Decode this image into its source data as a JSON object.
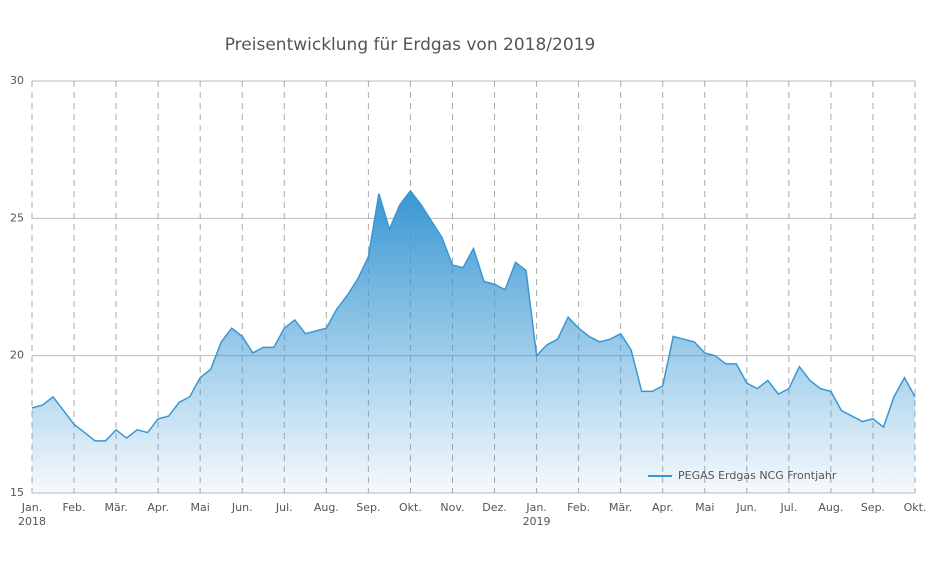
{
  "chart_data": {
    "type": "area",
    "title": "Preisentwicklung für Erdgas von 2018/2019",
    "xlim": [
      0,
      21
    ],
    "xticks": [
      {
        "value": 0,
        "label": "Jan."
      },
      {
        "value": 1,
        "label": "Feb."
      },
      {
        "value": 2,
        "label": "Mär."
      },
      {
        "value": 3,
        "label": "Apr."
      },
      {
        "value": 4,
        "label": "Mai"
      },
      {
        "value": 5,
        "label": "Jun."
      },
      {
        "value": 6,
        "label": "Jul."
      },
      {
        "value": 7,
        "label": "Aug."
      },
      {
        "value": 8,
        "label": "Sep."
      },
      {
        "value": 9,
        "label": "Okt."
      },
      {
        "value": 10,
        "label": "Nov."
      },
      {
        "value": 11,
        "label": "Dez."
      },
      {
        "value": 12,
        "label": "Jan."
      },
      {
        "value": 13,
        "label": "Feb."
      },
      {
        "value": 14,
        "label": "Mär."
      },
      {
        "value": 15,
        "label": "Apr."
      },
      {
        "value": 16,
        "label": "Mai"
      },
      {
        "value": 17,
        "label": "Jun."
      },
      {
        "value": 18,
        "label": "Jul."
      },
      {
        "value": 19,
        "label": "Aug."
      },
      {
        "value": 20,
        "label": "Sep."
      },
      {
        "value": 21,
        "label": "Okt."
      }
    ],
    "year_labels": [
      {
        "value": 0,
        "label": "2018"
      },
      {
        "value": 12,
        "label": "2019"
      }
    ],
    "ylim": [
      15,
      30
    ],
    "yticks": [
      15,
      20,
      25,
      30
    ],
    "grid": true,
    "legend": "bottom-right",
    "x": [
      0,
      0.25,
      0.5,
      0.75,
      1,
      1.25,
      1.5,
      1.75,
      2,
      2.25,
      2.5,
      2.75,
      3,
      3.25,
      3.5,
      3.75,
      4,
      4.25,
      4.5,
      4.75,
      5,
      5.25,
      5.5,
      5.75,
      6,
      6.25,
      6.5,
      6.75,
      7,
      7.25,
      7.5,
      7.75,
      8,
      8.25,
      8.5,
      8.75,
      9,
      9.25,
      9.5,
      9.75,
      10,
      10.25,
      10.5,
      10.75,
      11,
      11.25,
      11.5,
      11.75,
      12,
      12.25,
      12.5,
      12.75,
      13,
      13.25,
      13.5,
      13.75,
      14,
      14.25,
      14.5,
      14.75,
      15,
      15.25,
      15.5,
      15.75,
      16,
      16.25,
      16.5,
      16.75,
      17,
      17.25,
      17.5,
      17.75,
      18,
      18.25,
      18.5,
      18.75,
      19,
      19.25,
      19.5,
      19.75,
      20,
      20.25,
      20.5,
      20.75,
      21
    ],
    "series": [
      {
        "name": "PEGAS Erdgas NCG Frontjahr",
        "color": "#3a97d3",
        "values": [
          18.1,
          18.2,
          18.5,
          18.0,
          17.5,
          17.2,
          16.9,
          16.9,
          17.3,
          17.0,
          17.3,
          17.2,
          17.7,
          17.8,
          18.3,
          18.5,
          19.2,
          19.5,
          20.5,
          21.0,
          20.7,
          20.1,
          20.3,
          20.3,
          21.0,
          21.3,
          20.8,
          20.9,
          21.0,
          21.7,
          22.2,
          22.8,
          23.6,
          25.9,
          24.6,
          25.5,
          26.0,
          25.5,
          24.9,
          24.3,
          23.3,
          23.2,
          23.9,
          22.7,
          22.6,
          22.4,
          23.4,
          23.1,
          20.0,
          20.4,
          20.6,
          21.4,
          21.0,
          20.7,
          20.5,
          20.6,
          20.8,
          20.2,
          18.7,
          18.7,
          18.9,
          20.7,
          20.6,
          20.5,
          20.1,
          20.0,
          19.7,
          19.7,
          19.0,
          18.8,
          19.1,
          18.6,
          18.8,
          19.6,
          19.1,
          18.8,
          18.7,
          18.0,
          17.8,
          17.6,
          17.7,
          17.4,
          18.5,
          19.2,
          18.5
        ]
      }
    ]
  }
}
